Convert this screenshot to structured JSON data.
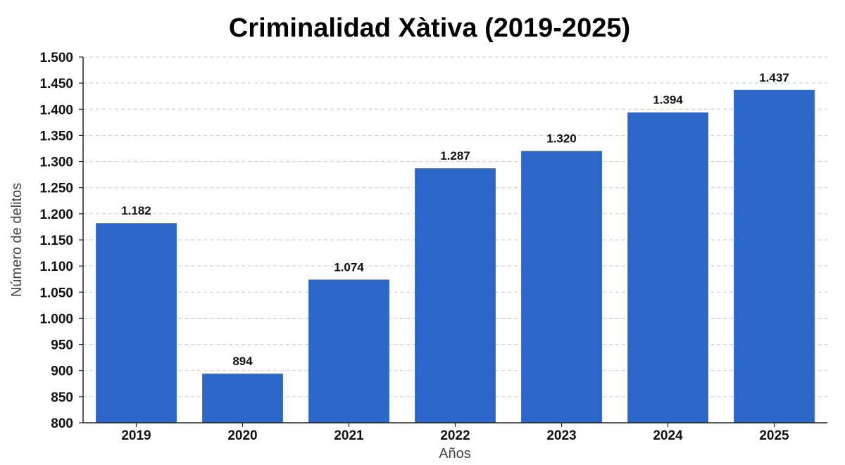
{
  "chart_data": {
    "type": "bar",
    "title": "Criminalidad Xàtiva (2019-2025)",
    "xlabel": "Años",
    "ylabel": "Número de delitos",
    "categories": [
      "2019",
      "2020",
      "2021",
      "2022",
      "2023",
      "2024",
      "2025"
    ],
    "values": [
      1182,
      894,
      1074,
      1287,
      1320,
      1394,
      1437
    ],
    "data_labels": [
      "1.182",
      "894",
      "1.074",
      "1.287",
      "1.320",
      "1.394",
      "1.437"
    ],
    "ylim": [
      800,
      1500
    ],
    "yticks": [
      800,
      850,
      900,
      950,
      1000,
      1050,
      1100,
      1150,
      1200,
      1250,
      1300,
      1350,
      1400,
      1450,
      1500
    ],
    "ytick_labels": [
      "800",
      "850",
      "900",
      "950",
      "1.000",
      "1.050",
      "1.100",
      "1.150",
      "1.200",
      "1.250",
      "1.300",
      "1.350",
      "1.400",
      "1.450",
      "1.500"
    ],
    "grid": true,
    "bar_color": "#2c66c9"
  }
}
